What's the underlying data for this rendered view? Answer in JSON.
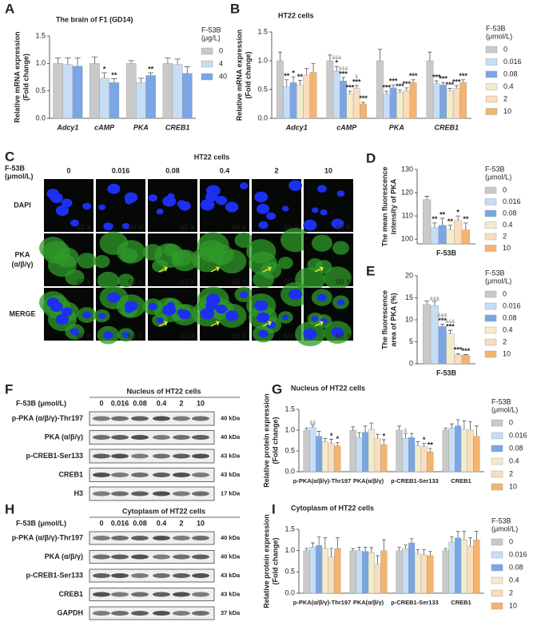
{
  "chart_data": [
    {
      "type": "bar",
      "panel": "A",
      "title": "The brain of F1 (GD14)",
      "ylabel": [
        "Relative mRNA expression",
        "(Fold change)"
      ],
      "legend_title": [
        "F-53B",
        "(μg/L)"
      ],
      "categories": [
        "Adcy1",
        "cAMP",
        "PKA",
        "CREB1"
      ],
      "ylim": [
        0,
        1.5
      ],
      "yticks": [
        {
          "value": 0,
          "label": "0.0"
        },
        {
          "value": 0.5,
          "label": "0.5"
        },
        {
          "value": 1,
          "label": "1.0"
        },
        {
          "value": 1.5,
          "label": "1.5"
        }
      ],
      "series": [
        {
          "name": "0",
          "color": "#c9c9c9",
          "values": [
            1.0,
            1.0,
            1.0,
            1.0
          ],
          "errors": [
            0.1,
            0.12,
            0.05,
            0.1
          ]
        },
        {
          "name": "4",
          "color": "#c6ddf6",
          "values": [
            0.98,
            0.73,
            0.65,
            0.98
          ],
          "errors": [
            0.12,
            0.1,
            0.08,
            0.1
          ],
          "sig": [
            null,
            "*",
            null,
            null
          ]
        },
        {
          "name": "40",
          "color": "#7aa6e6",
          "values": [
            0.95,
            0.65,
            0.78,
            0.82
          ],
          "errors": [
            0.15,
            0.07,
            0.05,
            0.12
          ],
          "sig": [
            null,
            "**",
            "**",
            null
          ]
        }
      ]
    },
    {
      "type": "bar",
      "panel": "B",
      "title": "HT22 cells",
      "ylabel": [
        "Relative mRNA expression",
        "(Fold change)"
      ],
      "legend_title": [
        "F-53B",
        "(μmol/L)"
      ],
      "categories": [
        "Adcy1",
        "cAMP",
        "PKA",
        "CREB1"
      ],
      "ylim": [
        0,
        1.5
      ],
      "yticks": [
        {
          "value": 0,
          "label": "0.0"
        },
        {
          "value": 0.5,
          "label": "0.5"
        },
        {
          "value": 1,
          "label": "1.0"
        },
        {
          "value": 1.5,
          "label": "1.5"
        }
      ],
      "series": [
        {
          "name": "0",
          "color": "#c9c9c9",
          "values": [
            1.0,
            1.0,
            1.0,
            1.0
          ],
          "errors": [
            0.15,
            0.1,
            0.2,
            0.15
          ]
        },
        {
          "name": "0.016",
          "color": "#c6ddf6",
          "values": [
            0.55,
            0.82,
            0.42,
            0.6
          ],
          "errors": [
            0.12,
            0.08,
            0.05,
            0.05
          ],
          "sig": [
            "**",
            "*",
            "***",
            "***"
          ],
          "amp": [
            null,
            "&&&",
            null,
            null
          ]
        },
        {
          "name": "0.08",
          "color": "#7aa6e6",
          "values": [
            0.62,
            0.65,
            0.53,
            0.58
          ],
          "errors": [
            0.1,
            0.06,
            0.05,
            0.04
          ],
          "sig": [
            "*",
            "***",
            "***",
            "***"
          ],
          "amp": [
            null,
            "&&&",
            null,
            null
          ]
        },
        {
          "name": "0.4",
          "color": "#f2eccb",
          "values": [
            0.58,
            0.42,
            0.45,
            0.48
          ],
          "errors": [
            0.08,
            0.05,
            0.04,
            0.04
          ],
          "sig": [
            "**",
            "***",
            "***",
            "***"
          ]
        },
        {
          "name": "2",
          "color": "#fbdcbc",
          "values": [
            0.75,
            0.52,
            0.48,
            0.52
          ],
          "errors": [
            0.12,
            0.05,
            0.05,
            0.05
          ],
          "sig": [
            null,
            "***",
            "***",
            "***"
          ],
          "amp": [
            null,
            "&",
            null,
            null
          ]
        },
        {
          "name": "10",
          "color": "#f4b46e",
          "values": [
            0.8,
            0.25,
            0.62,
            0.62
          ],
          "errors": [
            0.15,
            0.03,
            0.05,
            0.05
          ],
          "sig": [
            null,
            "***",
            "***",
            "***"
          ]
        }
      ]
    },
    {
      "type": "bar",
      "panel": "D",
      "ylabel": [
        "The mean fluorescence",
        "intensity of PKA"
      ],
      "legend_title": [
        "F-53B",
        "(μmol/L)"
      ],
      "categories": [
        "F-53B"
      ],
      "ylim": [
        98,
        130
      ],
      "yticks": [
        100,
        110,
        120,
        130
      ],
      "series": [
        {
          "name": "0",
          "color": "#c9c9c9",
          "values": [
            117
          ],
          "errors": [
            1.5
          ]
        },
        {
          "name": "0.016",
          "color": "#c6ddf6",
          "values": [
            105
          ],
          "errors": [
            2
          ],
          "sig": [
            "**"
          ]
        },
        {
          "name": "0.08",
          "color": "#7aa6e6",
          "values": [
            106
          ],
          "errors": [
            3
          ],
          "sig": [
            "**"
          ]
        },
        {
          "name": "0.4",
          "color": "#f2eccb",
          "values": [
            104
          ],
          "errors": [
            2
          ],
          "sig": [
            "**"
          ]
        },
        {
          "name": "2",
          "color": "#fbdcbc",
          "values": [
            108
          ],
          "errors": [
            2
          ],
          "sig": [
            "*"
          ]
        },
        {
          "name": "10",
          "color": "#f4b46e",
          "values": [
            104
          ],
          "errors": [
            3
          ],
          "sig": [
            "**"
          ]
        }
      ]
    },
    {
      "type": "bar",
      "panel": "E",
      "ylabel": [
        "The fluorescence",
        "area of PKA (%)"
      ],
      "legend_title": [
        "F-53B",
        "(μmol/L)"
      ],
      "categories": [
        "F-53B"
      ],
      "ylim": [
        0,
        20
      ],
      "yticks": [
        0,
        5,
        10,
        15,
        20
      ],
      "series": [
        {
          "name": "0",
          "color": "#c9c9c9",
          "values": [
            13.5
          ],
          "errors": [
            0.8
          ]
        },
        {
          "name": "0.016",
          "color": "#c6ddf6",
          "values": [
            13.2
          ],
          "errors": [
            1
          ],
          "amp": [
            "&&&"
          ]
        },
        {
          "name": "0.08",
          "color": "#7aa6e6",
          "values": [
            8.5
          ],
          "errors": [
            0.5
          ],
          "sig": [
            "***"
          ],
          "amp": [
            "&&&"
          ]
        },
        {
          "name": "0.4",
          "color": "#f2eccb",
          "values": [
            6.8
          ],
          "errors": [
            0.8
          ],
          "sig": [
            "***"
          ],
          "amp": [
            "&&&"
          ]
        },
        {
          "name": "2",
          "color": "#fbdcbc",
          "values": [
            2.0
          ],
          "errors": [
            0.3
          ],
          "sig": [
            "***"
          ]
        },
        {
          "name": "10",
          "color": "#f4b46e",
          "values": [
            1.9
          ],
          "errors": [
            0.2
          ],
          "sig": [
            "***"
          ]
        }
      ]
    },
    {
      "type": "bar",
      "panel": "G",
      "title": "Nucleus of HT22 cells",
      "ylabel": [
        "Relative protein expression",
        "(Fold change)"
      ],
      "legend_title": [
        "F-53B",
        "(μmol/L)"
      ],
      "categories": [
        "p-PKA(α/β/γ)-Thr197",
        "PKA(α/β/γ)",
        "p-CREB1-Ser133",
        "CREB1"
      ],
      "ylim": [
        0,
        1.5
      ],
      "yticks": [
        {
          "value": 0,
          "label": "0.0"
        },
        {
          "value": 0.5,
          "label": "0.5"
        },
        {
          "value": 1,
          "label": "1.0"
        },
        {
          "value": 1.5,
          "label": "1.5"
        }
      ],
      "series": [
        {
          "name": "0",
          "color": "#c9c9c9",
          "values": [
            1.0,
            1.0,
            1.0,
            1.0
          ],
          "errors": [
            0.05,
            0.08,
            0.1,
            0.05
          ]
        },
        {
          "name": "0.016",
          "color": "#c6ddf6",
          "values": [
            1.07,
            0.82,
            0.8,
            1.05
          ],
          "errors": [
            0.05,
            0.12,
            0.12,
            0.1
          ],
          "amp": [
            "&&",
            null,
            "&",
            null
          ]
        },
        {
          "name": "0.08",
          "color": "#7aa6e6",
          "values": [
            0.85,
            0.95,
            0.82,
            1.1
          ],
          "errors": [
            0.12,
            0.15,
            0.1,
            0.15
          ]
        },
        {
          "name": "0.4",
          "color": "#f2eccb",
          "values": [
            0.72,
            1.02,
            0.62,
            1.02
          ],
          "errors": [
            0.08,
            0.15,
            0.1,
            0.2
          ]
        },
        {
          "name": "2",
          "color": "#fbdcbc",
          "values": [
            0.68,
            0.8,
            0.6,
            1.0
          ],
          "errors": [
            0.1,
            0.1,
            0.08,
            0.2
          ],
          "sig": [
            "*",
            null,
            "*",
            null
          ]
        },
        {
          "name": "10",
          "color": "#f4b46e",
          "values": [
            0.62,
            0.65,
            0.48,
            0.85
          ],
          "errors": [
            0.08,
            0.12,
            0.08,
            0.25
          ],
          "sig": [
            "*",
            "*",
            "**",
            null
          ]
        }
      ]
    },
    {
      "type": "bar",
      "panel": "I",
      "title": "Cytoplasm of HT22 cells",
      "ylabel": [
        "Relative protein expression",
        "(Fold change)"
      ],
      "legend_title": [
        "F-53B",
        "(μmol/L)"
      ],
      "categories": [
        "p-PKA(α/β/γ)-Thr197",
        "PKA(α/β/γ)",
        "p-CREB1-Ser133",
        "CREB1"
      ],
      "ylim": [
        0,
        1.5
      ],
      "yticks": [
        {
          "value": 0,
          "label": "0.0"
        },
        {
          "value": 0.5,
          "label": "0.5"
        },
        {
          "value": 1,
          "label": "1.0"
        },
        {
          "value": 1.5,
          "label": "1.5"
        }
      ],
      "series": [
        {
          "name": "0",
          "color": "#c9c9c9",
          "values": [
            1.0,
            1.0,
            1.0,
            1.0
          ],
          "errors": [
            0.05,
            0.05,
            0.08,
            0.05
          ]
        },
        {
          "name": "0.016",
          "color": "#c6ddf6",
          "values": [
            1.08,
            1.0,
            1.05,
            1.2
          ],
          "errors": [
            0.1,
            0.08,
            0.08,
            0.12
          ]
        },
        {
          "name": "0.08",
          "color": "#7aa6e6",
          "values": [
            1.12,
            0.98,
            1.18,
            1.3
          ],
          "errors": [
            0.2,
            0.1,
            0.1,
            0.15
          ]
        },
        {
          "name": "0.4",
          "color": "#f2eccb",
          "values": [
            1.05,
            0.95,
            0.92,
            1.25
          ],
          "errors": [
            0.25,
            0.12,
            0.1,
            0.2
          ]
        },
        {
          "name": "2",
          "color": "#fbdcbc",
          "values": [
            0.85,
            0.68,
            0.9,
            1.1
          ],
          "errors": [
            0.2,
            0.2,
            0.12,
            0.2
          ]
        },
        {
          "name": "10",
          "color": "#f4b46e",
          "values": [
            1.05,
            1.0,
            0.88,
            1.25
          ],
          "errors": [
            0.25,
            0.25,
            0.1,
            0.2
          ]
        }
      ]
    }
  ],
  "imaging": {
    "panel": "C",
    "title": "HT22 cells",
    "dose_label": [
      "F-53B",
      "(μmol/L)"
    ],
    "doses": [
      "0",
      "0.016",
      "0.08",
      "0.4",
      "2",
      "10"
    ],
    "rows": [
      [
        "DAPI"
      ],
      [
        "PKA",
        "(α/β/γ)"
      ],
      [
        "MERGE"
      ]
    ],
    "scale_label": "60 X"
  },
  "blots": [
    {
      "panel": "F",
      "title": "Nucleus of HT22 cells",
      "dose_label": "F-53B (μmol/L)",
      "lanes": [
        "0",
        "0.016",
        "0.08",
        "0.4",
        "2",
        "10"
      ],
      "rows": [
        {
          "label": "p-PKA (α/β/γ)-Thr197",
          "kda": "40 kDa"
        },
        {
          "label": "PKA (α/β/γ)",
          "kda": "40 kDa"
        },
        {
          "label": "p-CREB1-Ser133",
          "kda": "43 kDa"
        },
        {
          "label": "CREB1",
          "kda": "43 kDa"
        },
        {
          "label": "H3",
          "kda": "17 kDa"
        }
      ]
    },
    {
      "panel": "H",
      "title": "Cytoplasm of HT22 cells",
      "dose_label": "F-53B (μmol/L)",
      "lanes": [
        "0",
        "0.016",
        "0.08",
        "0.4",
        "2",
        "10"
      ],
      "rows": [
        {
          "label": "p-PKA (α/β/γ)-Thr197",
          "kda": "40 kDa"
        },
        {
          "label": "PKA (α/β/γ)",
          "kda": "40 kDa"
        },
        {
          "label": "p-CREB1-Ser133",
          "kda": "43 kDa"
        },
        {
          "label": "CREB1",
          "kda": "43 kDa"
        },
        {
          "label": "GAPDH",
          "kda": "37 kDa"
        }
      ]
    }
  ]
}
